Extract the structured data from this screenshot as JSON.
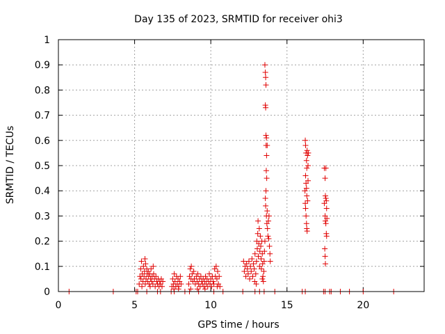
{
  "chart_data": {
    "type": "scatter",
    "title": "Day 135 of 2023, SRMTID for receiver ohi3",
    "xlabel": "GPS time / hours",
    "ylabel": "SRMTID / TECUs",
    "xlim": [
      0,
      24
    ],
    "ylim": [
      0,
      1
    ],
    "xticks": [
      0,
      5,
      10,
      15,
      20
    ],
    "xtick_labels": [
      "0",
      "5",
      "10",
      "15",
      "20"
    ],
    "yticks": [
      0,
      0.1,
      0.2,
      0.3,
      0.4,
      0.5,
      0.6,
      0.7,
      0.8,
      0.9,
      1
    ],
    "ytick_labels": [
      "0",
      "0.1",
      "0.2",
      "0.3",
      "0.4",
      "0.5",
      "0.6",
      "0.7",
      "0.8",
      "0.9",
      "1"
    ],
    "grid": true,
    "marker": "+",
    "series": [
      {
        "name": "SRMTID",
        "color": "#e00000",
        "points": [
          [
            0.7,
            0
          ],
          [
            3.6,
            0
          ],
          [
            5.1,
            0
          ],
          [
            5.2,
            0
          ],
          [
            5.8,
            0
          ],
          [
            6.5,
            0
          ],
          [
            6.7,
            0
          ],
          [
            7.4,
            0
          ],
          [
            7.6,
            0
          ],
          [
            8.3,
            0
          ],
          [
            8.6,
            0
          ],
          [
            9.2,
            0
          ],
          [
            10.2,
            0
          ],
          [
            10.8,
            0
          ],
          [
            12.1,
            0
          ],
          [
            12.9,
            0
          ],
          [
            13.2,
            0
          ],
          [
            13.5,
            0
          ],
          [
            14.2,
            0
          ],
          [
            16.0,
            0
          ],
          [
            16.2,
            0
          ],
          [
            17.4,
            0
          ],
          [
            17.5,
            0
          ],
          [
            17.8,
            0
          ],
          [
            17.9,
            0
          ],
          [
            18.5,
            0
          ],
          [
            19.1,
            0
          ],
          [
            20.0,
            0
          ],
          [
            22.0,
            0
          ],
          [
            5.3,
            0.03
          ],
          [
            5.35,
            0.06
          ],
          [
            5.4,
            0.09
          ],
          [
            5.42,
            0.05
          ],
          [
            5.45,
            0.12
          ],
          [
            5.5,
            0.07
          ],
          [
            5.55,
            0.04
          ],
          [
            5.58,
            0.1
          ],
          [
            5.62,
            0.06
          ],
          [
            5.65,
            0.08
          ],
          [
            5.7,
            0.03
          ],
          [
            5.72,
            0.11
          ],
          [
            5.75,
            0.05
          ],
          [
            5.8,
            0.09
          ],
          [
            5.82,
            0.07
          ],
          [
            5.85,
            0.04
          ],
          [
            5.9,
            0.08
          ],
          [
            5.92,
            0.06
          ],
          [
            5.95,
            0.03
          ],
          [
            6.0,
            0.07
          ],
          [
            6.05,
            0.05
          ],
          [
            6.08,
            0.09
          ],
          [
            6.12,
            0.04
          ],
          [
            6.15,
            0.06
          ],
          [
            6.2,
            0.03
          ],
          [
            6.25,
            0.07
          ],
          [
            6.3,
            0.05
          ],
          [
            6.35,
            0.02
          ],
          [
            6.4,
            0.06
          ],
          [
            6.45,
            0.04
          ],
          [
            6.5,
            0.03
          ],
          [
            6.55,
            0.05
          ],
          [
            6.6,
            0.02
          ],
          [
            6.65,
            0.04
          ],
          [
            6.7,
            0.03
          ],
          [
            6.75,
            0.05
          ],
          [
            6.8,
            0.02
          ],
          [
            6.85,
            0.04
          ],
          [
            5.48,
            0.02
          ],
          [
            5.68,
            0.13
          ],
          [
            6.02,
            0.02
          ],
          [
            6.22,
            0.1
          ],
          [
            7.45,
            0.02
          ],
          [
            7.5,
            0.05
          ],
          [
            7.55,
            0.03
          ],
          [
            7.6,
            0.07
          ],
          [
            7.65,
            0.04
          ],
          [
            7.7,
            0.02
          ],
          [
            7.75,
            0.06
          ],
          [
            7.8,
            0.03
          ],
          [
            7.85,
            0.05
          ],
          [
            7.9,
            0.02
          ],
          [
            7.95,
            0.04
          ],
          [
            8.0,
            0.06
          ],
          [
            8.05,
            0.03
          ],
          [
            7.58,
            0.01
          ],
          [
            7.88,
            0.01
          ],
          [
            8.55,
            0.03
          ],
          [
            8.6,
            0.06
          ],
          [
            8.65,
            0.09
          ],
          [
            8.7,
            0.05
          ],
          [
            8.72,
            0.1
          ],
          [
            8.78,
            0.07
          ],
          [
            8.82,
            0.04
          ],
          [
            8.88,
            0.08
          ],
          [
            8.92,
            0.05
          ],
          [
            8.98,
            0.03
          ],
          [
            9.05,
            0.06
          ],
          [
            9.1,
            0.04
          ],
          [
            9.15,
            0.07
          ],
          [
            9.2,
            0.03
          ],
          [
            9.25,
            0.05
          ],
          [
            9.3,
            0.02
          ],
          [
            9.35,
            0.06
          ],
          [
            9.4,
            0.04
          ],
          [
            9.45,
            0.03
          ],
          [
            9.5,
            0.05
          ],
          [
            9.55,
            0.02
          ],
          [
            9.6,
            0.04
          ],
          [
            9.65,
            0.06
          ],
          [
            9.7,
            0.03
          ],
          [
            9.75,
            0.05
          ],
          [
            9.8,
            0.02
          ],
          [
            9.85,
            0.04
          ],
          [
            9.9,
            0.07
          ],
          [
            9.95,
            0.03
          ],
          [
            10.0,
            0.05
          ],
          [
            10.05,
            0.02
          ],
          [
            10.1,
            0.06
          ],
          [
            10.15,
            0.04
          ],
          [
            10.2,
            0.03
          ],
          [
            10.25,
            0.09
          ],
          [
            10.3,
            0.06
          ],
          [
            10.35,
            0.1
          ],
          [
            10.4,
            0.05
          ],
          [
            10.45,
            0.08
          ],
          [
            10.5,
            0.03
          ],
          [
            10.55,
            0.06
          ],
          [
            10.6,
            0.02
          ],
          [
            8.68,
            0.01
          ],
          [
            9.12,
            0.01
          ],
          [
            9.62,
            0.01
          ],
          [
            10.42,
            0.02
          ],
          [
            12.15,
            0.12
          ],
          [
            12.2,
            0.08
          ],
          [
            12.25,
            0.1
          ],
          [
            12.3,
            0.06
          ],
          [
            12.35,
            0.11
          ],
          [
            12.4,
            0.09
          ],
          [
            12.45,
            0.07
          ],
          [
            12.5,
            0.12
          ],
          [
            12.55,
            0.05
          ],
          [
            12.6,
            0.1
          ],
          [
            12.65,
            0.08
          ],
          [
            12.7,
            0.13
          ],
          [
            12.75,
            0.06
          ],
          [
            12.8,
            0.11
          ],
          [
            12.85,
            0.09
          ],
          [
            12.9,
            0.15
          ],
          [
            12.95,
            0.07
          ],
          [
            13.0,
            0.12
          ],
          [
            13.02,
            0.2
          ],
          [
            13.05,
            0.17
          ],
          [
            13.08,
            0.23
          ],
          [
            13.1,
            0.28
          ],
          [
            13.12,
            0.14
          ],
          [
            13.15,
            0.19
          ],
          [
            13.18,
            0.25
          ],
          [
            13.2,
            0.1
          ],
          [
            13.22,
            0.16
          ],
          [
            13.25,
            0.22
          ],
          [
            13.28,
            0.18
          ],
          [
            13.3,
            0.13
          ],
          [
            13.32,
            0.09
          ],
          [
            13.35,
            0.2
          ],
          [
            13.38,
            0.15
          ],
          [
            13.4,
            0.11
          ],
          [
            13.42,
            0.06
          ],
          [
            13.45,
            0.04
          ],
          [
            12.88,
            0.04
          ],
          [
            12.98,
            0.03
          ],
          [
            13.38,
            0.05
          ],
          [
            13.55,
            0.9
          ],
          [
            13.58,
            0.87
          ],
          [
            13.6,
            0.85
          ],
          [
            13.62,
            0.82
          ],
          [
            13.58,
            0.74
          ],
          [
            13.6,
            0.73
          ],
          [
            13.62,
            0.62
          ],
          [
            13.65,
            0.61
          ],
          [
            13.63,
            0.58
          ],
          [
            13.66,
            0.54
          ],
          [
            13.64,
            0.48
          ],
          [
            13.67,
            0.45
          ],
          [
            13.62,
            0.4
          ],
          [
            13.58,
            0.37
          ],
          [
            13.6,
            0.34
          ],
          [
            13.65,
            0.3
          ],
          [
            13.68,
            0.27
          ],
          [
            13.72,
            0.25
          ],
          [
            13.75,
            0.22
          ],
          [
            13.78,
            0.28
          ],
          [
            13.8,
            0.21
          ],
          [
            13.82,
            0.3
          ],
          [
            13.85,
            0.18
          ],
          [
            13.88,
            0.15
          ],
          [
            13.9,
            0.12
          ],
          [
            13.7,
            0.32
          ],
          [
            13.55,
            0.2
          ],
          [
            13.52,
            0.16
          ],
          [
            13.5,
            0.12
          ],
          [
            13.48,
            0.08
          ],
          [
            13.7,
            0.58
          ],
          [
            16.2,
            0.6
          ],
          [
            16.22,
            0.58
          ],
          [
            16.25,
            0.55
          ],
          [
            16.28,
            0.52
          ],
          [
            16.3,
            0.49
          ],
          [
            16.32,
            0.56
          ],
          [
            16.35,
            0.54
          ],
          [
            16.38,
            0.5
          ],
          [
            16.22,
            0.46
          ],
          [
            16.25,
            0.43
          ],
          [
            16.28,
            0.41
          ],
          [
            16.3,
            0.38
          ],
          [
            16.2,
            0.35
          ],
          [
            16.22,
            0.33
          ],
          [
            16.25,
            0.3
          ],
          [
            16.28,
            0.27
          ],
          [
            16.3,
            0.25
          ],
          [
            16.32,
            0.24
          ],
          [
            16.35,
            0.36
          ],
          [
            16.38,
            0.44
          ],
          [
            16.4,
            0.55
          ],
          [
            16.18,
            0.4
          ],
          [
            17.45,
            0.49
          ],
          [
            17.5,
            0.45
          ],
          [
            17.55,
            0.49
          ],
          [
            17.52,
            0.38
          ],
          [
            17.55,
            0.37
          ],
          [
            17.58,
            0.36
          ],
          [
            17.6,
            0.33
          ],
          [
            17.5,
            0.3
          ],
          [
            17.52,
            0.28
          ],
          [
            17.55,
            0.27
          ],
          [
            17.58,
            0.23
          ],
          [
            17.6,
            0.22
          ],
          [
            17.48,
            0.17
          ],
          [
            17.5,
            0.14
          ],
          [
            17.52,
            0.11
          ],
          [
            17.62,
            0.29
          ],
          [
            17.45,
            0.35
          ]
        ]
      }
    ]
  }
}
